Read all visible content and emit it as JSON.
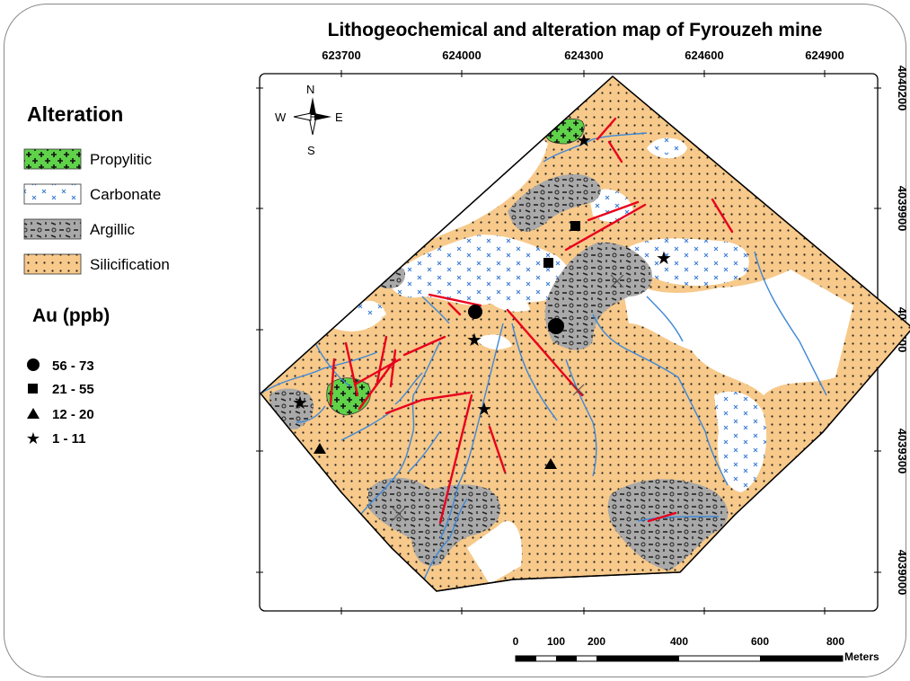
{
  "title": "Lithogeochemical and alteration map of Fyrouzeh mine",
  "x_ticks": [
    "623700",
    "624000",
    "624300",
    "624600",
    "624900"
  ],
  "y_ticks": [
    "4040200",
    "4039900",
    "4039600",
    "4039300",
    "4039000"
  ],
  "north_arrow": {
    "n": "N",
    "s": "S",
    "e": "E",
    "w": "W"
  },
  "legend": {
    "alteration_title": "Alteration",
    "alteration_items": [
      {
        "label": "Propylitic",
        "color": "#5fd24a"
      },
      {
        "label": "Carbonate",
        "color": "#ffffff"
      },
      {
        "label": "Argillic",
        "color": "#a9a9a9"
      },
      {
        "label": "Silicification",
        "color": "#f7c98a"
      }
    ],
    "au_title": "Au (ppb)",
    "au_items": [
      {
        "label": "56 - 73",
        "symbol": "circle"
      },
      {
        "label": "21 - 55",
        "symbol": "square"
      },
      {
        "label": "12 - 20",
        "symbol": "triangle"
      },
      {
        "label": "1 - 11",
        "symbol": "star"
      }
    ]
  },
  "scale_bar": {
    "labels": [
      "0",
      "100",
      "200",
      "400",
      "600",
      "800"
    ],
    "unit": "Meters"
  },
  "colors": {
    "silicification": "#f7c98a",
    "argillic": "#a9a9a9",
    "propylitic": "#5fd24a",
    "fault": "#e8001c",
    "stream": "#3f88d6",
    "carbonate_mark": "#3f7fd6"
  }
}
